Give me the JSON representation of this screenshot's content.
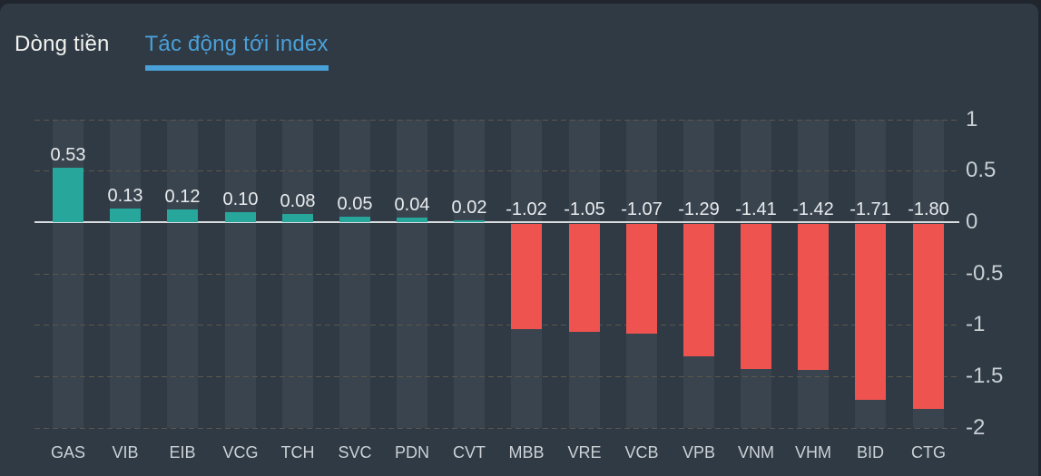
{
  "tabs": {
    "inactive": {
      "label": "Dòng tiền"
    },
    "active": {
      "label": "Tác động tới index"
    },
    "active_color": "#4aa0d8",
    "inactive_color": "#f3f3ee"
  },
  "chart_data": {
    "type": "bar",
    "title": "Tác động tới index",
    "categories": [
      "GAS",
      "VIB",
      "EIB",
      "VCG",
      "TCH",
      "SVC",
      "PDN",
      "CVT",
      "MBB",
      "VRE",
      "VCB",
      "VPB",
      "VNM",
      "VHM",
      "BID",
      "CTG"
    ],
    "values": [
      0.53,
      0.13,
      0.12,
      0.1,
      0.08,
      0.05,
      0.04,
      0.02,
      -1.02,
      -1.05,
      -1.07,
      -1.29,
      -1.41,
      -1.42,
      -1.71,
      -1.8
    ],
    "value_labels": [
      "0.53",
      "0.13",
      "0.12",
      "0.10",
      "0.08",
      "0.05",
      "0.04",
      "0.02",
      "-1.02",
      "-1.05",
      "-1.07",
      "-1.29",
      "-1.41",
      "-1.42",
      "-1.71",
      "-1.80"
    ],
    "y_ticks": [
      {
        "value": 1,
        "label": "1"
      },
      {
        "value": 0.5,
        "label": "0.5"
      },
      {
        "value": 0,
        "label": "0"
      },
      {
        "value": -0.5,
        "label": "-0.5"
      },
      {
        "value": -1,
        "label": "-1"
      },
      {
        "value": -1.5,
        "label": "-1.5"
      },
      {
        "value": -2,
        "label": "-2"
      }
    ],
    "ylim": [
      -2,
      1
    ],
    "xlabel": "",
    "ylabel": "",
    "axis_position": "right",
    "grid": "horizontal dashed lines, solid zero line, column background bands",
    "legend": "none",
    "positive_color": "#27a69b",
    "negative_color": "#ef5350",
    "zero_line_color": "#d8dcdf",
    "grid_color": "#5e564a",
    "band_color": "#39444f",
    "value_label_color": "#e9ebed",
    "tick_label_color": "#c9ced3",
    "panel_color": "#2f3a45"
  }
}
